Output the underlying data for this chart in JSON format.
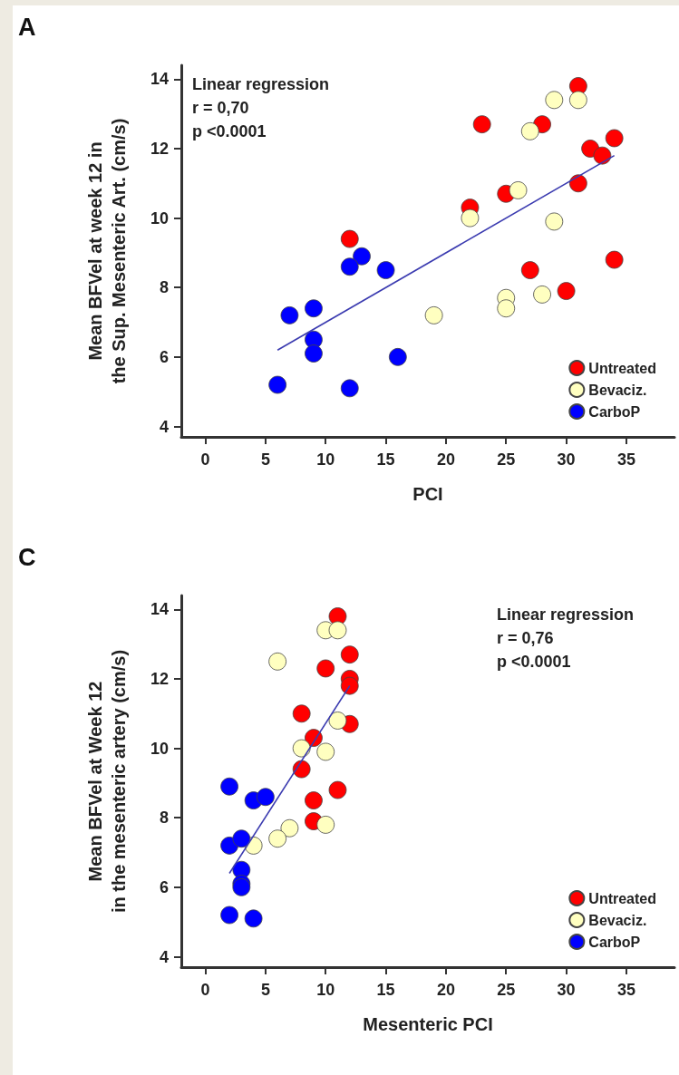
{
  "chart_data": [
    {
      "type": "scatter",
      "title": "A",
      "xlabel": "PCI",
      "ylabel": "Mean BFVel at week 12 in\nthe Sup. Mesenteric Art. (cm/s)",
      "annotations": [
        "Linear regression\nr = 0,70\np <0.0001"
      ],
      "xlim": [
        -2,
        39
      ],
      "xticks": [
        0,
        5,
        10,
        15,
        20,
        25,
        30,
        35
      ],
      "ylim": [
        3.7,
        14.4
      ],
      "yticks": [
        4,
        6,
        8,
        10,
        12,
        14
      ],
      "grid": false,
      "legend": "bottom right",
      "marker": "circle",
      "series": [
        {
          "name": "Untreated",
          "color": "#ff0000",
          "x": [
            31,
            23,
            28,
            32,
            33,
            34,
            31,
            22,
            25,
            12,
            27,
            34,
            30
          ],
          "values": [
            13.8,
            12.7,
            12.7,
            12.0,
            11.8,
            12.3,
            11.0,
            10.3,
            10.7,
            9.4,
            8.5,
            8.8,
            7.9
          ]
        },
        {
          "name": "Bevaciz.",
          "color": "#ffffc0",
          "x": [
            29,
            31,
            27,
            26,
            22,
            29,
            25,
            25,
            28,
            19
          ],
          "values": [
            13.4,
            13.4,
            12.5,
            10.8,
            10.0,
            9.9,
            7.7,
            7.4,
            7.8,
            7.2
          ]
        },
        {
          "name": "CarboP",
          "color": "#0000ff",
          "x": [
            13,
            12,
            15,
            7,
            9,
            9,
            9,
            16,
            6,
            12
          ],
          "values": [
            8.9,
            8.6,
            8.5,
            7.2,
            7.4,
            6.5,
            6.1,
            6.0,
            5.2,
            5.1
          ]
        },
        {
          "type": "line",
          "color": "#3b3bb0",
          "marker": "none",
          "x": [
            6,
            34
          ],
          "values": [
            6.2,
            11.8
          ]
        }
      ]
    },
    {
      "type": "scatter",
      "title": "C",
      "xlabel": "Mesenteric PCI",
      "ylabel": "Mean BFVel at Week 12\nin the mesenteric artery (cm/s)",
      "annotations": [
        "Linear regression\nr = 0,76\np <0.0001"
      ],
      "xlim": [
        -2,
        39
      ],
      "xticks": [
        0,
        5,
        10,
        15,
        20,
        25,
        30,
        35
      ],
      "ylim": [
        3.7,
        14.4
      ],
      "yticks": [
        4,
        6,
        8,
        10,
        12,
        14
      ],
      "grid": false,
      "legend": "bottom right",
      "marker": "circle",
      "series": [
        {
          "name": "Untreated",
          "color": "#ff0000",
          "x": [
            11,
            12,
            10,
            12,
            12,
            8,
            12,
            9,
            8,
            11,
            9,
            9
          ],
          "values": [
            13.8,
            12.7,
            12.3,
            12.0,
            11.8,
            11.0,
            10.7,
            10.3,
            9.4,
            8.8,
            8.5,
            7.9
          ]
        },
        {
          "name": "Bevaciz.",
          "color": "#ffffc0",
          "x": [
            10,
            11,
            6,
            11,
            8,
            10,
            10,
            7,
            6,
            4
          ],
          "values": [
            13.4,
            13.4,
            12.5,
            10.8,
            10.0,
            9.9,
            7.8,
            7.7,
            7.4,
            7.2
          ]
        },
        {
          "name": "CarboP",
          "color": "#0000ff",
          "x": [
            2,
            4,
            5,
            2,
            3,
            3,
            3,
            3,
            2,
            4
          ],
          "values": [
            8.9,
            8.5,
            8.6,
            7.2,
            7.4,
            6.5,
            6.1,
            6.0,
            5.2,
            5.1
          ]
        },
        {
          "type": "line",
          "color": "#3b3bb0",
          "marker": "none",
          "x": [
            2,
            12
          ],
          "values": [
            6.4,
            11.8
          ]
        }
      ]
    }
  ]
}
